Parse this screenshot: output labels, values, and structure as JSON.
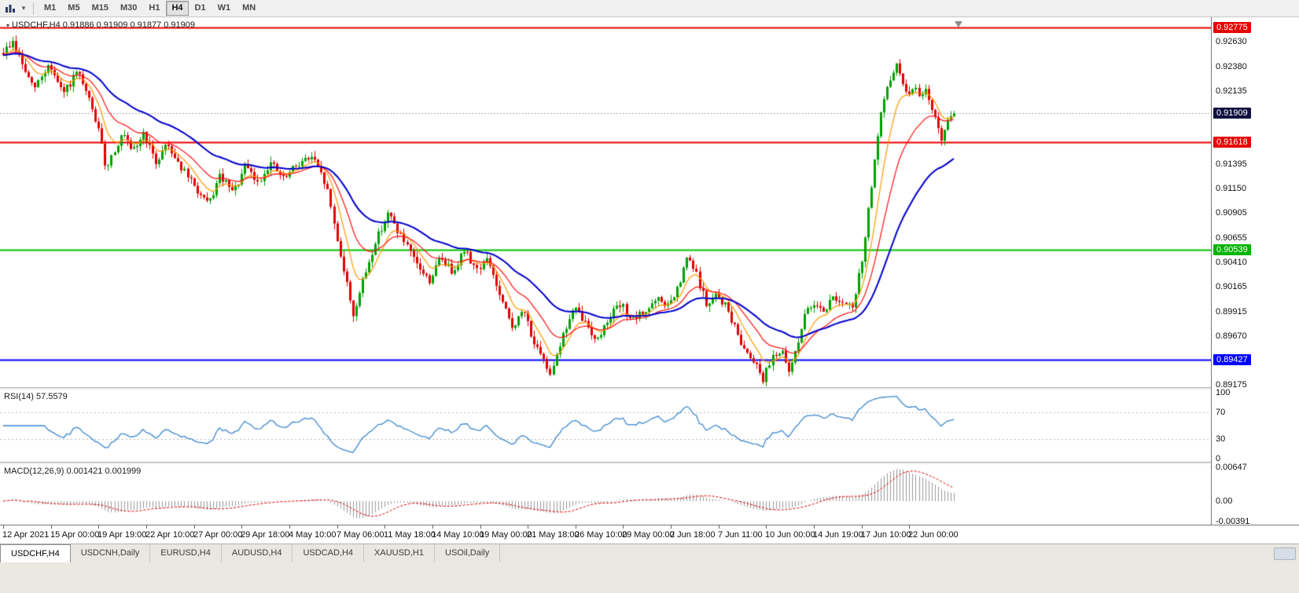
{
  "toolbar": {
    "timeframes": [
      "M1",
      "M5",
      "M15",
      "M30",
      "H1",
      "H4",
      "D1",
      "W1",
      "MN"
    ],
    "active_timeframe": "H4"
  },
  "chart_title": "USDCHF,H4 0.91886 0.91909 0.91877 0.91909",
  "rsi_label": "RSI(14) 57.5579",
  "macd_label": "MACD(12,26,9) 0.001421 0.001999",
  "tabs": [
    "USDCHF,H4",
    "USDCNH,Daily",
    "EURUSD,H4",
    "AUDUSD,H4",
    "USDCAD,H4",
    "XAUUSD,H1",
    "USOil,Daily"
  ],
  "active_tab": "USDCHF,H4",
  "colors": {
    "candle_up": "#00a000",
    "candle_down": "#e00000",
    "ma_fast": "#ff9900",
    "ma_mid": "#ff1010",
    "ma_slow": "#0000cc",
    "rsi_line": "#3d87cf",
    "rsi_level": "#b8b8b8",
    "macd_hist": "#9a9a9a",
    "macd_signal": "#e00000",
    "current_price_line": "#a8a8a8",
    "shift_marker": "#8a8a8a",
    "badges": {
      "red": "#e60000",
      "green": "#00b400",
      "blue": "#0000ff",
      "dark": "#101040"
    }
  },
  "chart_data": {
    "type": "candlestick",
    "symbol": "USDCHF",
    "timeframe": "H4",
    "ohlc": {
      "open": "0.91886",
      "high": "0.91909",
      "low": "0.91877",
      "close": "0.91909"
    },
    "last_price": 0.91909,
    "bar_count": 300,
    "seed": 9,
    "ylim": [
      0.89152,
      0.92878
    ],
    "y_ticks": [
      {
        "label": "0.92775",
        "value": 0.92775,
        "badge": "red"
      },
      {
        "label": "0.92630",
        "value": 0.9263
      },
      {
        "label": "0.92380",
        "value": 0.9238
      },
      {
        "label": "0.92135",
        "value": 0.92135
      },
      {
        "label": "0.91909",
        "value": 0.91909,
        "badge": "dark"
      },
      {
        "label": "0.91618",
        "value": 0.91618,
        "badge": "red"
      },
      {
        "label": "0.91395",
        "value": 0.91395
      },
      {
        "label": "0.91150",
        "value": 0.9115
      },
      {
        "label": "0.90905",
        "value": 0.90905
      },
      {
        "label": "0.90655",
        "value": 0.90655
      },
      {
        "label": "0.90539",
        "value": 0.90539,
        "badge": "green"
      },
      {
        "label": "0.90410",
        "value": 0.9041
      },
      {
        "label": "0.90165",
        "value": 0.90165
      },
      {
        "label": "0.89915",
        "value": 0.89915
      },
      {
        "label": "0.89670",
        "value": 0.8967
      },
      {
        "label": "0.89427",
        "value": 0.89427,
        "badge": "blue"
      },
      {
        "label": "0.89175",
        "value": 0.89175
      }
    ],
    "h_lines": [
      {
        "value": 0.92775,
        "color": "#e60000",
        "width": 2
      },
      {
        "value": 0.91618,
        "color": "#e60000",
        "width": 2
      },
      {
        "value": 0.90539,
        "color": "#00c000",
        "width": 2
      },
      {
        "value": 0.89427,
        "color": "#0000ff",
        "width": 2
      }
    ],
    "current_price_line": 0.91909,
    "moving_averages": [
      {
        "period": 8,
        "color": "#ff9900",
        "width": 1.2
      },
      {
        "period": 18,
        "color": "#ff1010",
        "width": 1.2
      },
      {
        "period": 40,
        "color": "#0000cc",
        "width": 2
      }
    ],
    "price_path": [
      [
        0.0,
        0.9252
      ],
      [
        0.01,
        0.9263
      ],
      [
        0.022,
        0.9236
      ],
      [
        0.032,
        0.9215
      ],
      [
        0.048,
        0.9241
      ],
      [
        0.062,
        0.921
      ],
      [
        0.078,
        0.9232
      ],
      [
        0.092,
        0.92
      ],
      [
        0.1,
        0.9175
      ],
      [
        0.108,
        0.9136
      ],
      [
        0.118,
        0.9157
      ],
      [
        0.126,
        0.917
      ],
      [
        0.135,
        0.915
      ],
      [
        0.148,
        0.9172
      ],
      [
        0.16,
        0.914
      ],
      [
        0.172,
        0.9162
      ],
      [
        0.185,
        0.914
      ],
      [
        0.2,
        0.9118
      ],
      [
        0.215,
        0.9098
      ],
      [
        0.228,
        0.9128
      ],
      [
        0.242,
        0.911
      ],
      [
        0.255,
        0.9138
      ],
      [
        0.268,
        0.912
      ],
      [
        0.28,
        0.9142
      ],
      [
        0.295,
        0.9124
      ],
      [
        0.31,
        0.9141
      ],
      [
        0.325,
        0.9147
      ],
      [
        0.34,
        0.9118
      ],
      [
        0.352,
        0.906
      ],
      [
        0.368,
        0.8988
      ],
      [
        0.38,
        0.9028
      ],
      [
        0.393,
        0.9066
      ],
      [
        0.405,
        0.909
      ],
      [
        0.418,
        0.9068
      ],
      [
        0.432,
        0.9042
      ],
      [
        0.448,
        0.9022
      ],
      [
        0.46,
        0.9046
      ],
      [
        0.472,
        0.9032
      ],
      [
        0.485,
        0.9053
      ],
      [
        0.498,
        0.9034
      ],
      [
        0.51,
        0.9044
      ],
      [
        0.522,
        0.9006
      ],
      [
        0.535,
        0.8976
      ],
      [
        0.548,
        0.8992
      ],
      [
        0.56,
        0.8955
      ],
      [
        0.575,
        0.893
      ],
      [
        0.588,
        0.8966
      ],
      [
        0.6,
        0.8995
      ],
      [
        0.612,
        0.898
      ],
      [
        0.625,
        0.8962
      ],
      [
        0.638,
        0.8988
      ],
      [
        0.65,
        0.8998
      ],
      [
        0.662,
        0.8982
      ],
      [
        0.675,
        0.8992
      ],
      [
        0.688,
        0.9003
      ],
      [
        0.7,
        0.8997
      ],
      [
        0.71,
        0.9014
      ],
      [
        0.72,
        0.9047
      ],
      [
        0.73,
        0.9026
      ],
      [
        0.74,
        0.8996
      ],
      [
        0.75,
        0.9008
      ],
      [
        0.76,
        0.8997
      ],
      [
        0.77,
        0.8973
      ],
      [
        0.78,
        0.8953
      ],
      [
        0.79,
        0.8943
      ],
      [
        0.8,
        0.8923
      ],
      [
        0.808,
        0.8947
      ],
      [
        0.818,
        0.8952
      ],
      [
        0.826,
        0.8929
      ],
      [
        0.834,
        0.8956
      ],
      [
        0.844,
        0.899
      ],
      [
        0.854,
        0.9002
      ],
      [
        0.864,
        0.8992
      ],
      [
        0.874,
        0.9008
      ],
      [
        0.884,
        0.8997
      ],
      [
        0.894,
        0.8996
      ],
      [
        0.904,
        0.905
      ],
      [
        0.914,
        0.9126
      ],
      [
        0.924,
        0.9195
      ],
      [
        0.933,
        0.9226
      ],
      [
        0.941,
        0.9242
      ],
      [
        0.949,
        0.9209
      ],
      [
        0.957,
        0.9219
      ],
      [
        0.964,
        0.9206
      ],
      [
        0.971,
        0.9214
      ],
      [
        0.979,
        0.919
      ],
      [
        0.986,
        0.9163
      ],
      [
        0.992,
        0.9179
      ],
      [
        1.0,
        0.91909
      ]
    ],
    "x_labels": [
      "12 Apr 2021",
      "15 Apr 00:00",
      "19 Apr 19:00",
      "22 Apr 10:00",
      "27 Apr 00:00",
      "29 Apr 18:00",
      "4 May 10:00",
      "7 May 06:00",
      "11 May 18:00",
      "14 May 10:00",
      "19 May 00:00",
      "21 May 18:00",
      "26 May 10:00",
      "29 May 00:00",
      "2 Jun 18:00",
      "7 Jun 11:00",
      "10 Jun 00:00",
      "14 Jun 19:00",
      "17 Jun 10:00",
      "22 Jun 00:00"
    ],
    "rsi": {
      "period": 14,
      "value": "57.5579",
      "ticks": [
        {
          "label": "100",
          "value": 100
        },
        {
          "label": "70",
          "value": 70
        },
        {
          "label": "30",
          "value": 30
        },
        {
          "label": "0",
          "value": 0
        }
      ],
      "levels": [
        70,
        30
      ]
    },
    "macd": {
      "fast": 12,
      "slow": 26,
      "signal": 9,
      "values": [
        "0.001421",
        "0.001999"
      ],
      "ylim": [
        -0.00391,
        0.00647
      ],
      "ticks": [
        {
          "label": "0.00647",
          "value": 0.00647
        },
        {
          "label": "0.00",
          "value": 0
        },
        {
          "label": "-0.00391",
          "value": -0.00391
        }
      ]
    }
  }
}
